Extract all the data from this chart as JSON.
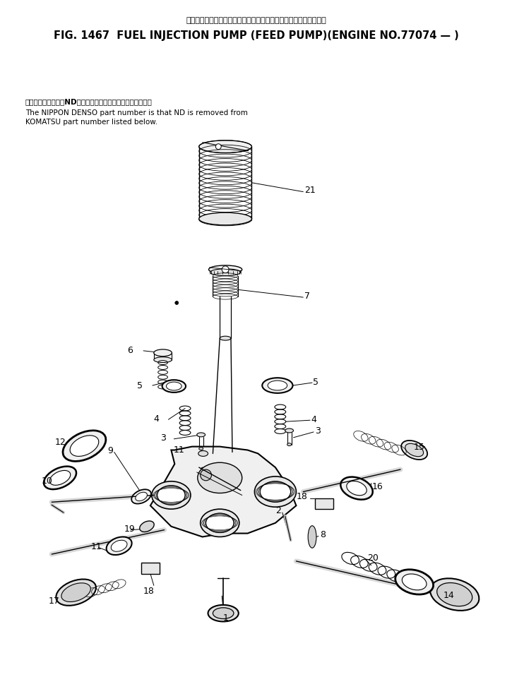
{
  "title_japanese": "フェルインジェクションポンプ　フィードポンプ　適　用　号　機",
  "title_english": "FIG. 1467  FUEL INJECTION PUMP (FEED PUMP)(ENGINE NO.77074 — )",
  "note_jp": "品番のメーカー記号NDを除いたものが日本電装の品番です。",
  "note_en1": "The NIPPON DENSO part number is that ND is removed from",
  "note_en2": "KOMATSU part number listed below.",
  "bg_color": "#ffffff"
}
